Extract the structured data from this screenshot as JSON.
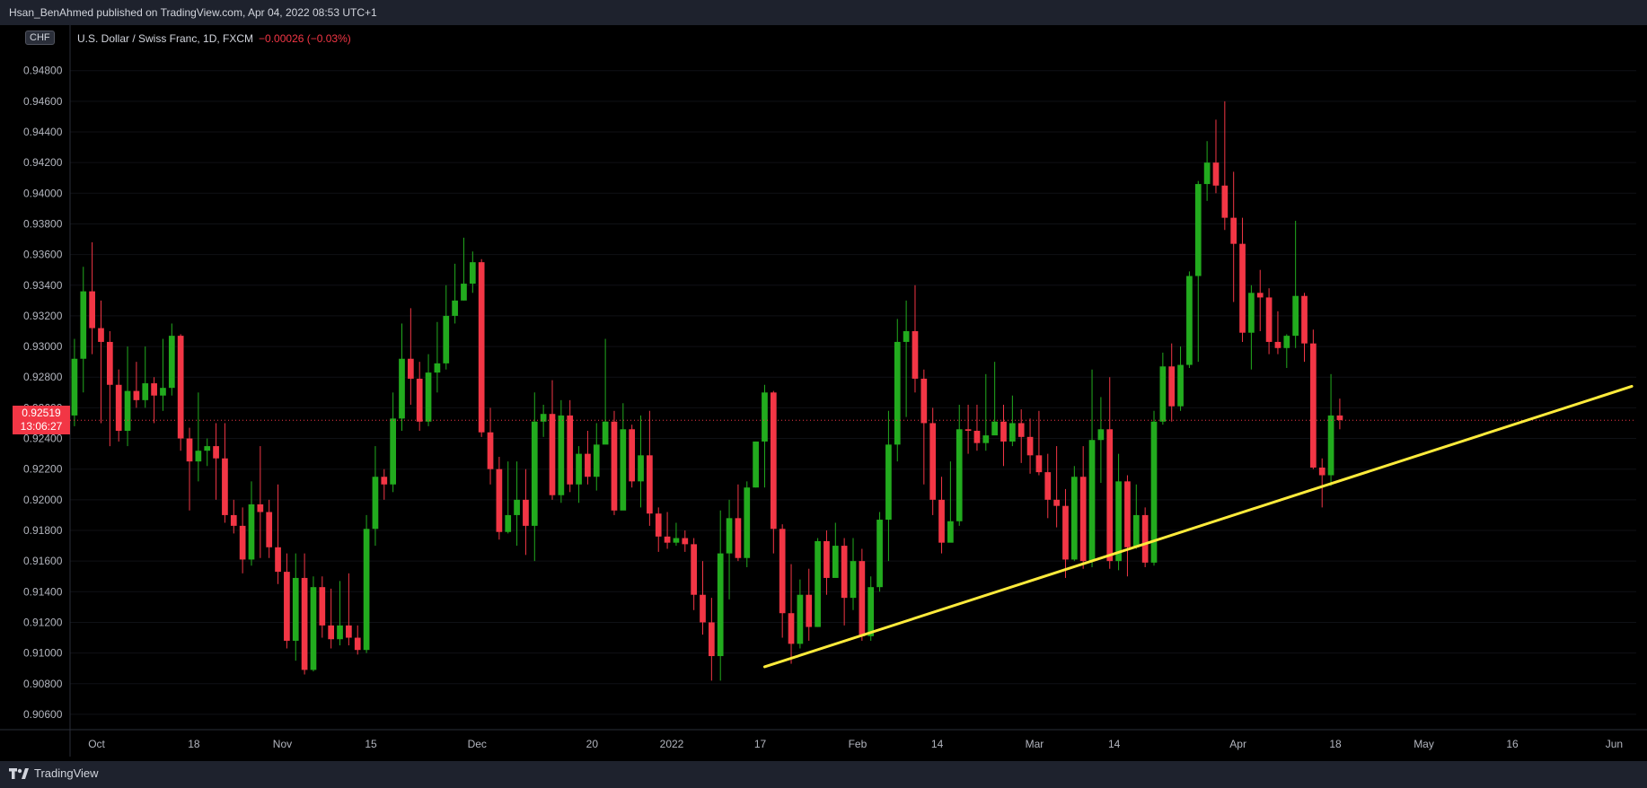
{
  "header": {
    "publisher_line": "Hsan_BenAhmed published on TradingView.com, Apr 04, 2022 08:53 UTC+1"
  },
  "footer": {
    "brand": "TradingView"
  },
  "legend": {
    "symbol": "U.S. Dollar / Swiss Franc, 1D, FXCM",
    "change": "−0.00026 (−0.03%)"
  },
  "currency_badge": "CHF",
  "last_price": {
    "value": "0.92519",
    "countdown": "13:06:27"
  },
  "colors": {
    "up": "#22ab1e",
    "down": "#f23645",
    "trendline": "#ffeb3b",
    "background": "#000000",
    "panel": "#1e222d"
  },
  "chart_data": {
    "type": "candlestick",
    "title": "U.S. Dollar / Swiss Franc, 1D, FXCM",
    "xlabel": "",
    "ylabel": "",
    "ylim": [
      0.905,
      0.9505
    ],
    "y_ticks": [
      "0.90600",
      "0.90800",
      "0.91000",
      "0.91200",
      "0.91400",
      "0.91600",
      "0.91800",
      "0.92000",
      "0.92200",
      "0.92400",
      "0.92600",
      "0.92800",
      "0.93000",
      "0.93200",
      "0.93400",
      "0.93600",
      "0.93800",
      "0.94000",
      "0.94200",
      "0.94400",
      "0.94600",
      "0.94800"
    ],
    "x_ticks": [
      {
        "label": "Oct",
        "index": 2.5
      },
      {
        "label": "18",
        "index": 13.5
      },
      {
        "label": "Nov",
        "index": 23.5
      },
      {
        "label": "15",
        "index": 33.5
      },
      {
        "label": "Dec",
        "index": 45.5
      },
      {
        "label": "20",
        "index": 58.5
      },
      {
        "label": "2022",
        "index": 67.5
      },
      {
        "label": "17",
        "index": 77.5
      },
      {
        "label": "Feb",
        "index": 88.5
      },
      {
        "label": "14",
        "index": 97.5
      },
      {
        "label": "Mar",
        "index": 108.5
      },
      {
        "label": "14",
        "index": 117.5
      },
      {
        "label": "Apr",
        "index": 131.5
      },
      {
        "label": "18",
        "index": 142.5
      },
      {
        "label": "May",
        "index": 152.5
      },
      {
        "label": "16",
        "index": 162.5
      },
      {
        "label": "Jun",
        "index": 174
      }
    ],
    "x_slots": 177,
    "last_price": 0.92519,
    "candles": [
      [
        0.9255,
        0.9292,
        0.9305,
        0.9248
      ],
      [
        0.9292,
        0.9336,
        0.9352,
        0.927
      ],
      [
        0.9336,
        0.9312,
        0.9368,
        0.9295
      ],
      [
        0.9312,
        0.9303,
        0.933,
        0.925
      ],
      [
        0.9303,
        0.9275,
        0.931,
        0.9235
      ],
      [
        0.9275,
        0.9245,
        0.9285,
        0.9238
      ],
      [
        0.9245,
        0.9271,
        0.93,
        0.9235
      ],
      [
        0.9271,
        0.9265,
        0.929,
        0.926
      ],
      [
        0.9265,
        0.9276,
        0.93,
        0.926
      ],
      [
        0.9276,
        0.9268,
        0.928,
        0.925
      ],
      [
        0.9268,
        0.9273,
        0.9305,
        0.9258
      ],
      [
        0.9273,
        0.9307,
        0.9315,
        0.9268
      ],
      [
        0.9307,
        0.924,
        0.9308,
        0.9232
      ],
      [
        0.924,
        0.9225,
        0.9247,
        0.9193
      ],
      [
        0.9225,
        0.9232,
        0.927,
        0.9212
      ],
      [
        0.9232,
        0.9235,
        0.924,
        0.9222
      ],
      [
        0.9235,
        0.9227,
        0.925,
        0.92
      ],
      [
        0.9227,
        0.919,
        0.925,
        0.9185
      ],
      [
        0.919,
        0.9183,
        0.92,
        0.9178
      ],
      [
        0.9183,
        0.9161,
        0.9195,
        0.9152
      ],
      [
        0.9161,
        0.9197,
        0.9212,
        0.9157
      ],
      [
        0.9197,
        0.9192,
        0.9235,
        0.9162
      ],
      [
        0.9192,
        0.9169,
        0.92,
        0.9162
      ],
      [
        0.9169,
        0.9153,
        0.921,
        0.9145
      ],
      [
        0.9153,
        0.9108,
        0.9165,
        0.9103
      ],
      [
        0.9108,
        0.9149,
        0.9165,
        0.9095
      ],
      [
        0.9149,
        0.9089,
        0.9165,
        0.9086
      ],
      [
        0.9089,
        0.9143,
        0.915,
        0.9088
      ],
      [
        0.9143,
        0.9118,
        0.915,
        0.911
      ],
      [
        0.9118,
        0.9109,
        0.9142,
        0.9103
      ],
      [
        0.9109,
        0.9118,
        0.9147,
        0.9105
      ],
      [
        0.9118,
        0.911,
        0.9152,
        0.9105
      ],
      [
        0.911,
        0.9102,
        0.9118,
        0.9099
      ],
      [
        0.9102,
        0.9181,
        0.919,
        0.91
      ],
      [
        0.9181,
        0.9215,
        0.9235,
        0.917
      ],
      [
        0.9215,
        0.921,
        0.922,
        0.92
      ],
      [
        0.921,
        0.9253,
        0.927,
        0.9205
      ],
      [
        0.9253,
        0.9292,
        0.9315,
        0.9245
      ],
      [
        0.9292,
        0.9279,
        0.9325,
        0.9262
      ],
      [
        0.9279,
        0.9251,
        0.929,
        0.9245
      ],
      [
        0.9251,
        0.9283,
        0.9295,
        0.9248
      ],
      [
        0.9283,
        0.9289,
        0.9316,
        0.927
      ],
      [
        0.9289,
        0.932,
        0.934,
        0.9285
      ],
      [
        0.932,
        0.933,
        0.9354,
        0.9315
      ],
      [
        0.933,
        0.9341,
        0.9371,
        0.933
      ],
      [
        0.9341,
        0.9355,
        0.9362,
        0.9335
      ],
      [
        0.9355,
        0.9244,
        0.9357,
        0.9241
      ],
      [
        0.9244,
        0.922,
        0.926,
        0.921
      ],
      [
        0.922,
        0.9179,
        0.9228,
        0.9174
      ],
      [
        0.9179,
        0.919,
        0.9225,
        0.9178
      ],
      [
        0.919,
        0.92,
        0.9225,
        0.917
      ],
      [
        0.92,
        0.9183,
        0.922,
        0.9164
      ],
      [
        0.9183,
        0.9251,
        0.927,
        0.916
      ],
      [
        0.9251,
        0.9256,
        0.9262,
        0.9241
      ],
      [
        0.9256,
        0.9203,
        0.9278,
        0.92
      ],
      [
        0.9203,
        0.9255,
        0.9265,
        0.9198
      ],
      [
        0.9255,
        0.921,
        0.9265,
        0.9205
      ],
      [
        0.921,
        0.923,
        0.9235,
        0.9198
      ],
      [
        0.923,
        0.9215,
        0.9245,
        0.921
      ],
      [
        0.9215,
        0.9236,
        0.925,
        0.9206
      ],
      [
        0.9236,
        0.9251,
        0.9305,
        0.924
      ],
      [
        0.9251,
        0.9193,
        0.9258,
        0.919
      ],
      [
        0.9193,
        0.9246,
        0.9263,
        0.92
      ],
      [
        0.9246,
        0.9212,
        0.9249,
        0.9208
      ],
      [
        0.9212,
        0.9229,
        0.9255,
        0.9195
      ],
      [
        0.9229,
        0.9191,
        0.9258,
        0.9183
      ],
      [
        0.9191,
        0.9176,
        0.9195,
        0.9166
      ],
      [
        0.9176,
        0.9172,
        0.9192,
        0.9168
      ],
      [
        0.9172,
        0.9175,
        0.9185,
        0.917
      ],
      [
        0.9175,
        0.9171,
        0.918,
        0.9166
      ],
      [
        0.9171,
        0.9138,
        0.9175,
        0.9128
      ],
      [
        0.9138,
        0.912,
        0.916,
        0.9112
      ],
      [
        0.912,
        0.9098,
        0.9136,
        0.9082
      ],
      [
        0.9098,
        0.9165,
        0.9193,
        0.9082
      ],
      [
        0.9165,
        0.9188,
        0.92,
        0.9135
      ],
      [
        0.9188,
        0.9162,
        0.921,
        0.916
      ],
      [
        0.9162,
        0.9208,
        0.9212,
        0.9156
      ],
      [
        0.9208,
        0.9238,
        0.9238,
        0.9208
      ],
      [
        0.9238,
        0.927,
        0.9275,
        0.9208
      ],
      [
        0.927,
        0.9181,
        0.9271,
        0.9165
      ],
      [
        0.9181,
        0.9126,
        0.9184,
        0.911
      ],
      [
        0.9126,
        0.9106,
        0.9158,
        0.9093
      ],
      [
        0.9106,
        0.9138,
        0.9148,
        0.9103
      ],
      [
        0.9138,
        0.9117,
        0.9155,
        0.9108
      ],
      [
        0.9117,
        0.9173,
        0.9175,
        0.9117
      ],
      [
        0.9173,
        0.9149,
        0.918,
        0.9138
      ],
      [
        0.9149,
        0.917,
        0.9185,
        0.916
      ],
      [
        0.917,
        0.9136,
        0.9175,
        0.9118
      ],
      [
        0.9136,
        0.916,
        0.9175,
        0.9128
      ],
      [
        0.916,
        0.9111,
        0.9168,
        0.9108
      ],
      [
        0.9111,
        0.9143,
        0.915,
        0.9108
      ],
      [
        0.9143,
        0.9187,
        0.9192,
        0.914
      ],
      [
        0.9187,
        0.9236,
        0.9258,
        0.916
      ],
      [
        0.9236,
        0.9303,
        0.9318,
        0.9225
      ],
      [
        0.9303,
        0.931,
        0.933,
        0.9254
      ],
      [
        0.931,
        0.9279,
        0.934,
        0.927
      ],
      [
        0.9279,
        0.925,
        0.9285,
        0.921
      ],
      [
        0.925,
        0.92,
        0.926,
        0.919
      ],
      [
        0.92,
        0.9172,
        0.9215,
        0.9165
      ],
      [
        0.9172,
        0.9186,
        0.9225,
        0.9173
      ],
      [
        0.9186,
        0.9246,
        0.9262,
        0.9183
      ],
      [
        0.9246,
        0.9245,
        0.9262,
        0.923
      ],
      [
        0.9245,
        0.9237,
        0.9262,
        0.9232
      ],
      [
        0.9237,
        0.9242,
        0.9282,
        0.9232
      ],
      [
        0.9242,
        0.9251,
        0.929,
        0.9246
      ],
      [
        0.9251,
        0.9238,
        0.9262,
        0.9222
      ],
      [
        0.9238,
        0.925,
        0.9268,
        0.9235
      ],
      [
        0.925,
        0.9241,
        0.9259,
        0.9224
      ],
      [
        0.9241,
        0.9229,
        0.9253,
        0.9217
      ],
      [
        0.9229,
        0.9218,
        0.9258,
        0.9216
      ],
      [
        0.9218,
        0.92,
        0.923,
        0.9188
      ],
      [
        0.92,
        0.9196,
        0.9235,
        0.9182
      ],
      [
        0.9196,
        0.9161,
        0.9207,
        0.9149
      ],
      [
        0.9161,
        0.9215,
        0.9222,
        0.916
      ],
      [
        0.9215,
        0.916,
        0.9235,
        0.9155
      ],
      [
        0.916,
        0.9239,
        0.9285,
        0.9156
      ],
      [
        0.9239,
        0.9246,
        0.9267,
        0.9211
      ],
      [
        0.9246,
        0.916,
        0.928,
        0.9155
      ],
      [
        0.916,
        0.9212,
        0.923,
        0.9154
      ],
      [
        0.9212,
        0.9169,
        0.9216,
        0.915
      ],
      [
        0.9169,
        0.919,
        0.921,
        0.9168
      ],
      [
        0.919,
        0.9159,
        0.9195,
        0.9156
      ],
      [
        0.9159,
        0.9251,
        0.9258,
        0.9157
      ],
      [
        0.9251,
        0.9287,
        0.9296,
        0.9249
      ],
      [
        0.9287,
        0.9261,
        0.9302,
        0.9251
      ],
      [
        0.9261,
        0.9288,
        0.93,
        0.9258
      ],
      [
        0.9288,
        0.9346,
        0.9349,
        0.9286
      ],
      [
        0.9346,
        0.9406,
        0.9408,
        0.929
      ],
      [
        0.9406,
        0.942,
        0.9434,
        0.9395
      ],
      [
        0.942,
        0.9405,
        0.9448,
        0.94
      ],
      [
        0.9405,
        0.9384,
        0.946,
        0.9376
      ],
      [
        0.9384,
        0.9367,
        0.9414,
        0.9329
      ],
      [
        0.9367,
        0.9309,
        0.9384,
        0.9303
      ],
      [
        0.9309,
        0.9335,
        0.934,
        0.9285
      ],
      [
        0.9335,
        0.9332,
        0.935,
        0.931
      ],
      [
        0.9332,
        0.9303,
        0.9338,
        0.9295
      ],
      [
        0.9303,
        0.9299,
        0.9323,
        0.9295
      ],
      [
        0.9299,
        0.9307,
        0.9308,
        0.9286
      ],
      [
        0.9307,
        0.9333,
        0.9382,
        0.9299
      ],
      [
        0.9333,
        0.9302,
        0.9335,
        0.929
      ],
      [
        0.9302,
        0.9221,
        0.9311,
        0.922
      ],
      [
        0.9221,
        0.9216,
        0.9227,
        0.9195
      ],
      [
        0.9216,
        0.9255,
        0.9282,
        0.9209
      ],
      [
        0.9255,
        0.9252,
        0.9266,
        0.9246
      ]
    ],
    "trendline": {
      "from": [
        78,
        0.9091
      ],
      "to": [
        176,
        0.9274
      ]
    }
  }
}
